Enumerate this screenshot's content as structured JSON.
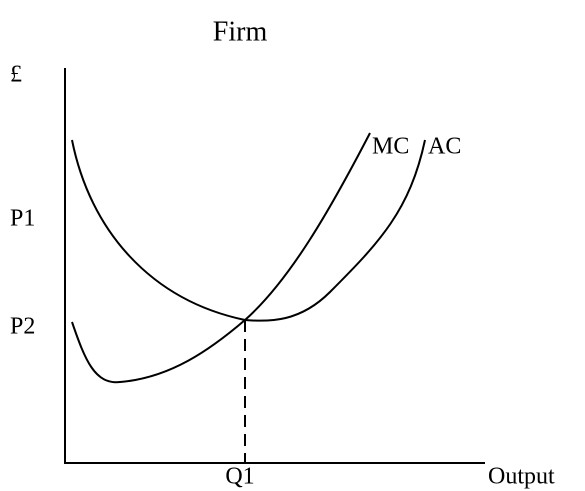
{
  "title": "Firm",
  "y_axis_label": "£",
  "x_axis_label": "Output",
  "labels": {
    "p1": "P1",
    "p2": "P2",
    "q1": "Q1"
  },
  "curves": {
    "mc": "MC",
    "ac": "AC"
  }
}
